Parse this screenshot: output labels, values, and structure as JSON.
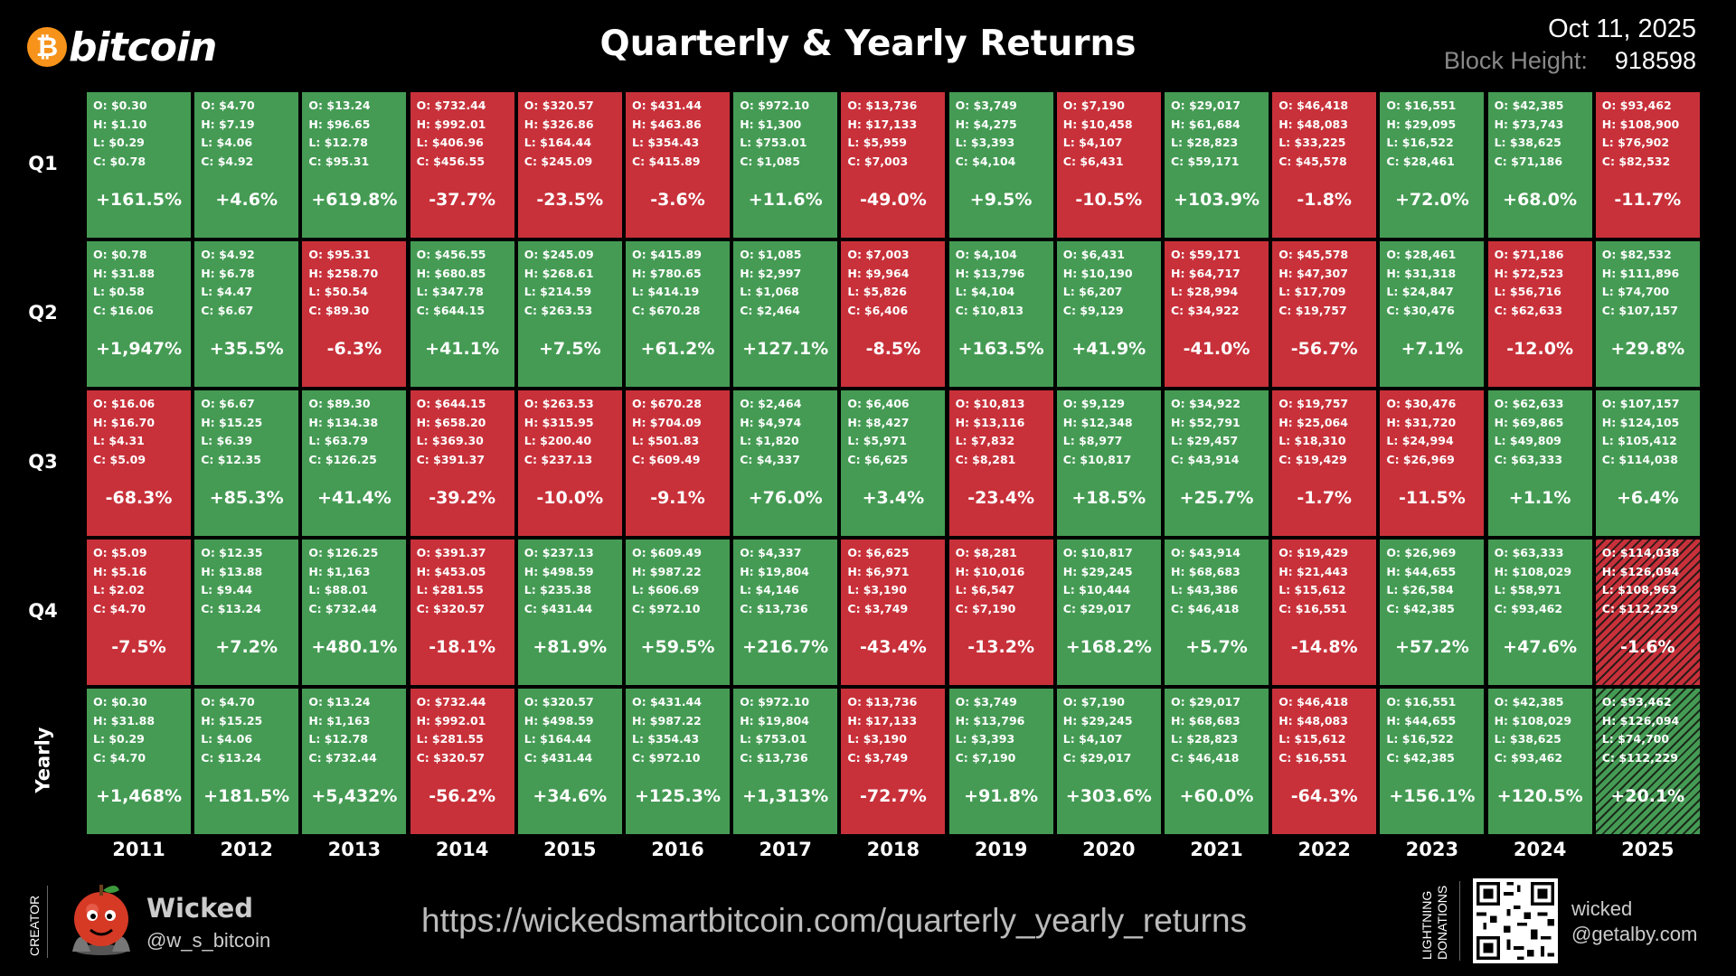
{
  "header": {
    "logo_text": "bitcoin",
    "logo_glyph": "₿",
    "title": "Quarterly & Yearly Returns",
    "date": "Oct 11, 2025",
    "block_height_label": "Block Height:",
    "block_height_value": "918598"
  },
  "colors": {
    "positive": "#459b54",
    "negative": "#c8313a",
    "bitcoin_orange": "#f7931a"
  },
  "chart_data": {
    "type": "table",
    "columns": [
      "2011",
      "2012",
      "2013",
      "2014",
      "2015",
      "2016",
      "2017",
      "2018",
      "2019",
      "2020",
      "2021",
      "2022",
      "2023",
      "2024",
      "2025"
    ],
    "rows": [
      "Q1",
      "Q2",
      "Q3",
      "Q4",
      "Yearly"
    ],
    "in_progress": [
      {
        "row": "Q4",
        "col": "2025"
      },
      {
        "row": "Yearly",
        "col": "2025"
      }
    ],
    "cells": [
      [
        {
          "o": "O: $0.30",
          "h": "H: $1.10",
          "l": "L: $0.29",
          "c": "C: $0.78",
          "ret": "+161.5%"
        },
        {
          "o": "O: $4.70",
          "h": "H: $7.19",
          "l": "L: $4.06",
          "c": "C: $4.92",
          "ret": "+4.6%"
        },
        {
          "o": "O: $13.24",
          "h": "H: $96.65",
          "l": "L: $12.78",
          "c": "C: $95.31",
          "ret": "+619.8%"
        },
        {
          "o": "O: $732.44",
          "h": "H: $992.01",
          "l": "L: $406.96",
          "c": "C: $456.55",
          "ret": "-37.7%"
        },
        {
          "o": "O: $320.57",
          "h": "H: $326.86",
          "l": "L: $164.44",
          "c": "C: $245.09",
          "ret": "-23.5%"
        },
        {
          "o": "O: $431.44",
          "h": "H: $463.86",
          "l": "L: $354.43",
          "c": "C: $415.89",
          "ret": "-3.6%"
        },
        {
          "o": "O: $972.10",
          "h": "H: $1,300",
          "l": "L: $753.01",
          "c": "C: $1,085",
          "ret": "+11.6%"
        },
        {
          "o": "O: $13,736",
          "h": "H: $17,133",
          "l": "L: $5,959",
          "c": "C: $7,003",
          "ret": "-49.0%"
        },
        {
          "o": "O: $3,749",
          "h": "H: $4,275",
          "l": "L: $3,393",
          "c": "C: $4,104",
          "ret": "+9.5%"
        },
        {
          "o": "O: $7,190",
          "h": "H: $10,458",
          "l": "L: $4,107",
          "c": "C: $6,431",
          "ret": "-10.5%"
        },
        {
          "o": "O: $29,017",
          "h": "H: $61,684",
          "l": "L: $28,823",
          "c": "C: $59,171",
          "ret": "+103.9%"
        },
        {
          "o": "O: $46,418",
          "h": "H: $48,083",
          "l": "L: $33,225",
          "c": "C: $45,578",
          "ret": "-1.8%"
        },
        {
          "o": "O: $16,551",
          "h": "H: $29,095",
          "l": "L: $16,522",
          "c": "C: $28,461",
          "ret": "+72.0%"
        },
        {
          "o": "O: $42,385",
          "h": "H: $73,743",
          "l": "L: $38,625",
          "c": "C: $71,186",
          "ret": "+68.0%"
        },
        {
          "o": "O: $93,462",
          "h": "H: $108,900",
          "l": "L: $76,902",
          "c": "C: $82,532",
          "ret": "-11.7%"
        }
      ],
      [
        {
          "o": "O: $0.78",
          "h": "H: $31.88",
          "l": "L: $0.58",
          "c": "C: $16.06",
          "ret": "+1,947%"
        },
        {
          "o": "O: $4.92",
          "h": "H: $6.78",
          "l": "L: $4.47",
          "c": "C: $6.67",
          "ret": "+35.5%"
        },
        {
          "o": "O: $95.31",
          "h": "H: $258.70",
          "l": "L: $50.54",
          "c": "C: $89.30",
          "ret": "-6.3%"
        },
        {
          "o": "O: $456.55",
          "h": "H: $680.85",
          "l": "L: $347.78",
          "c": "C: $644.15",
          "ret": "+41.1%"
        },
        {
          "o": "O: $245.09",
          "h": "H: $268.61",
          "l": "L: $214.59",
          "c": "C: $263.53",
          "ret": "+7.5%"
        },
        {
          "o": "O: $415.89",
          "h": "H: $780.65",
          "l": "L: $414.19",
          "c": "C: $670.28",
          "ret": "+61.2%"
        },
        {
          "o": "O: $1,085",
          "h": "H: $2,997",
          "l": "L: $1,068",
          "c": "C: $2,464",
          "ret": "+127.1%"
        },
        {
          "o": "O: $7,003",
          "h": "H: $9,964",
          "l": "L: $5,826",
          "c": "C: $6,406",
          "ret": "-8.5%"
        },
        {
          "o": "O: $4,104",
          "h": "H: $13,796",
          "l": "L: $4,104",
          "c": "C: $10,813",
          "ret": "+163.5%"
        },
        {
          "o": "O: $6,431",
          "h": "H: $10,190",
          "l": "L: $6,207",
          "c": "C: $9,129",
          "ret": "+41.9%"
        },
        {
          "o": "O: $59,171",
          "h": "H: $64,717",
          "l": "L: $28,994",
          "c": "C: $34,922",
          "ret": "-41.0%"
        },
        {
          "o": "O: $45,578",
          "h": "H: $47,307",
          "l": "L: $17,709",
          "c": "C: $19,757",
          "ret": "-56.7%"
        },
        {
          "o": "O: $28,461",
          "h": "H: $31,318",
          "l": "L: $24,847",
          "c": "C: $30,476",
          "ret": "+7.1%"
        },
        {
          "o": "O: $71,186",
          "h": "H: $72,523",
          "l": "L: $56,716",
          "c": "C: $62,633",
          "ret": "-12.0%"
        },
        {
          "o": "O: $82,532",
          "h": "H: $111,896",
          "l": "L: $74,700",
          "c": "C: $107,157",
          "ret": "+29.8%"
        }
      ],
      [
        {
          "o": "O: $16.06",
          "h": "H: $16.70",
          "l": "L: $4.31",
          "c": "C: $5.09",
          "ret": "-68.3%"
        },
        {
          "o": "O: $6.67",
          "h": "H: $15.25",
          "l": "L: $6.39",
          "c": "C: $12.35",
          "ret": "+85.3%"
        },
        {
          "o": "O: $89.30",
          "h": "H: $134.38",
          "l": "L: $63.79",
          "c": "C: $126.25",
          "ret": "+41.4%"
        },
        {
          "o": "O: $644.15",
          "h": "H: $658.20",
          "l": "L: $369.30",
          "c": "C: $391.37",
          "ret": "-39.2%"
        },
        {
          "o": "O: $263.53",
          "h": "H: $315.95",
          "l": "L: $200.40",
          "c": "C: $237.13",
          "ret": "-10.0%"
        },
        {
          "o": "O: $670.28",
          "h": "H: $704.09",
          "l": "L: $501.83",
          "c": "C: $609.49",
          "ret": "-9.1%"
        },
        {
          "o": "O: $2,464",
          "h": "H: $4,974",
          "l": "L: $1,820",
          "c": "C: $4,337",
          "ret": "+76.0%"
        },
        {
          "o": "O: $6,406",
          "h": "H: $8,427",
          "l": "L: $5,971",
          "c": "C: $6,625",
          "ret": "+3.4%"
        },
        {
          "o": "O: $10,813",
          "h": "H: $13,116",
          "l": "L: $7,832",
          "c": "C: $8,281",
          "ret": "-23.4%"
        },
        {
          "o": "O: $9,129",
          "h": "H: $12,348",
          "l": "L: $8,977",
          "c": "C: $10,817",
          "ret": "+18.5%"
        },
        {
          "o": "O: $34,922",
          "h": "H: $52,791",
          "l": "L: $29,457",
          "c": "C: $43,914",
          "ret": "+25.7%"
        },
        {
          "o": "O: $19,757",
          "h": "H: $25,064",
          "l": "L: $18,310",
          "c": "C: $19,429",
          "ret": "-1.7%"
        },
        {
          "o": "O: $30,476",
          "h": "H: $31,720",
          "l": "L: $24,994",
          "c": "C: $26,969",
          "ret": "-11.5%"
        },
        {
          "o": "O: $62,633",
          "h": "H: $69,865",
          "l": "L: $49,809",
          "c": "C: $63,333",
          "ret": "+1.1%"
        },
        {
          "o": "O: $107,157",
          "h": "H: $124,105",
          "l": "L: $105,412",
          "c": "C: $114,038",
          "ret": "+6.4%"
        }
      ],
      [
        {
          "o": "O: $5.09",
          "h": "H: $5.16",
          "l": "L: $2.02",
          "c": "C: $4.70",
          "ret": "-7.5%"
        },
        {
          "o": "O: $12.35",
          "h": "H: $13.88",
          "l": "L: $9.44",
          "c": "C: $13.24",
          "ret": "+7.2%"
        },
        {
          "o": "O: $126.25",
          "h": "H: $1,163",
          "l": "L: $88.01",
          "c": "C: $732.44",
          "ret": "+480.1%"
        },
        {
          "o": "O: $391.37",
          "h": "H: $453.05",
          "l": "L: $281.55",
          "c": "C: $320.57",
          "ret": "-18.1%"
        },
        {
          "o": "O: $237.13",
          "h": "H: $498.59",
          "l": "L: $235.38",
          "c": "C: $431.44",
          "ret": "+81.9%"
        },
        {
          "o": "O: $609.49",
          "h": "H: $987.22",
          "l": "L: $606.69",
          "c": "C: $972.10",
          "ret": "+59.5%"
        },
        {
          "o": "O: $4,337",
          "h": "H: $19,804",
          "l": "L: $4,146",
          "c": "C: $13,736",
          "ret": "+216.7%"
        },
        {
          "o": "O: $6,625",
          "h": "H: $6,971",
          "l": "L: $3,190",
          "c": "C: $3,749",
          "ret": "-43.4%"
        },
        {
          "o": "O: $8,281",
          "h": "H: $10,016",
          "l": "L: $6,547",
          "c": "C: $7,190",
          "ret": "-13.2%"
        },
        {
          "o": "O: $10,817",
          "h": "H: $29,245",
          "l": "L: $10,444",
          "c": "C: $29,017",
          "ret": "+168.2%"
        },
        {
          "o": "O: $43,914",
          "h": "H: $68,683",
          "l": "L: $43,386",
          "c": "C: $46,418",
          "ret": "+5.7%"
        },
        {
          "o": "O: $19,429",
          "h": "H: $21,443",
          "l": "L: $15,612",
          "c": "C: $16,551",
          "ret": "-14.8%"
        },
        {
          "o": "O: $26,969",
          "h": "H: $44,655",
          "l": "L: $26,584",
          "c": "C: $42,385",
          "ret": "+57.2%"
        },
        {
          "o": "O: $63,333",
          "h": "H: $108,029",
          "l": "L: $58,971",
          "c": "C: $93,462",
          "ret": "+47.6%"
        },
        {
          "o": "O: $114,038",
          "h": "H: $126,094",
          "l": "L: $108,963",
          "c": "C: $112,229",
          "ret": "-1.6%"
        }
      ],
      [
        {
          "o": "O: $0.30",
          "h": "H: $31.88",
          "l": "L: $0.29",
          "c": "C: $4.70",
          "ret": "+1,468%"
        },
        {
          "o": "O: $4.70",
          "h": "H: $15.25",
          "l": "L: $4.06",
          "c": "C: $13.24",
          "ret": "+181.5%"
        },
        {
          "o": "O: $13.24",
          "h": "H: $1,163",
          "l": "L: $12.78",
          "c": "C: $732.44",
          "ret": "+5,432%"
        },
        {
          "o": "O: $732.44",
          "h": "H: $992.01",
          "l": "L: $281.55",
          "c": "C: $320.57",
          "ret": "-56.2%"
        },
        {
          "o": "O: $320.57",
          "h": "H: $498.59",
          "l": "L: $164.44",
          "c": "C: $431.44",
          "ret": "+34.6%"
        },
        {
          "o": "O: $431.44",
          "h": "H: $987.22",
          "l": "L: $354.43",
          "c": "C: $972.10",
          "ret": "+125.3%"
        },
        {
          "o": "O: $972.10",
          "h": "H: $19,804",
          "l": "L: $753.01",
          "c": "C: $13,736",
          "ret": "+1,313%"
        },
        {
          "o": "O: $13,736",
          "h": "H: $17,133",
          "l": "L: $3,190",
          "c": "C: $3,749",
          "ret": "-72.7%"
        },
        {
          "o": "O: $3,749",
          "h": "H: $13,796",
          "l": "L: $3,393",
          "c": "C: $7,190",
          "ret": "+91.8%"
        },
        {
          "o": "O: $7,190",
          "h": "H: $29,245",
          "l": "L: $4,107",
          "c": "C: $29,017",
          "ret": "+303.6%"
        },
        {
          "o": "O: $29,017",
          "h": "H: $68,683",
          "l": "L: $28,823",
          "c": "C: $46,418",
          "ret": "+60.0%"
        },
        {
          "o": "O: $46,418",
          "h": "H: $48,083",
          "l": "L: $15,612",
          "c": "C: $16,551",
          "ret": "-64.3%"
        },
        {
          "o": "O: $16,551",
          "h": "H: $44,655",
          "l": "L: $16,522",
          "c": "C: $42,385",
          "ret": "+156.1%"
        },
        {
          "o": "O: $42,385",
          "h": "H: $108,029",
          "l": "L: $38,625",
          "c": "C: $93,462",
          "ret": "+120.5%"
        },
        {
          "o": "O: $93,462",
          "h": "H: $126,094",
          "l": "L: $74,700",
          "c": "C: $112,229",
          "ret": "+20.1%"
        }
      ]
    ]
  },
  "footer": {
    "creator_label": "CREATOR",
    "creator_name": "Wicked",
    "creator_handle": "@w_s_bitcoin",
    "url": "https://wickedsmartbitcoin.com/quarterly_yearly_returns",
    "lightning_label_1": "LIGHTNING",
    "lightning_label_2": "DONATIONS",
    "lightning_handle_1": "wicked",
    "lightning_handle_2": "@getalby.com",
    "avatar_icon": "apple-mascot-icon",
    "qr_icon": "qr-code-icon"
  }
}
